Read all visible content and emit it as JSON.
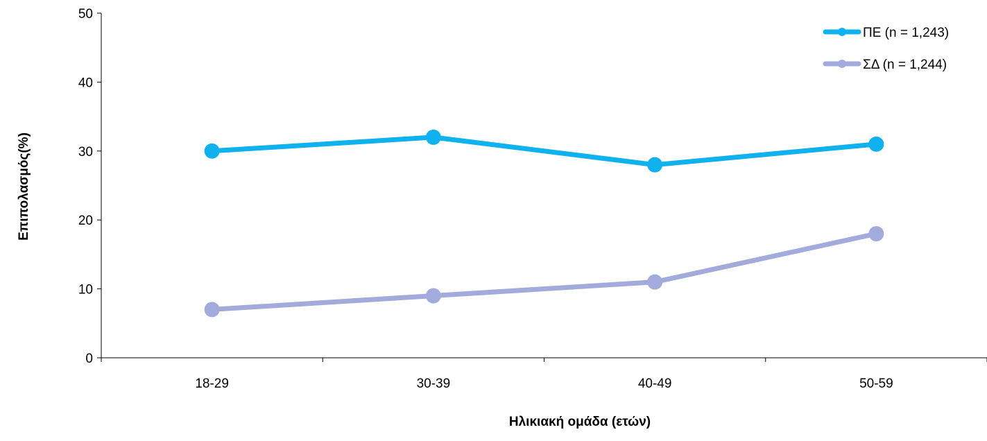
{
  "chart_data": {
    "type": "line",
    "categories": [
      "18-29",
      "30-39",
      "40-49",
      "50-59"
    ],
    "series": [
      {
        "name": "ΠΕ (n = 1,243)",
        "values": [
          30,
          32,
          28,
          31
        ],
        "color": "#0FB2EE"
      },
      {
        "name": "ΣΔ (n = 1,244)",
        "values": [
          7,
          9,
          11,
          18
        ],
        "color": "#A2ABDB"
      }
    ],
    "title": "",
    "xlabel": "Ηλικιακή ομάδα (ετών)",
    "ylabel": "Επιπολασμός(%)",
    "ylim": [
      0,
      50
    ],
    "yticks": [
      0,
      10,
      20,
      30,
      40,
      50
    ],
    "grid": false,
    "legend": "top-right"
  }
}
